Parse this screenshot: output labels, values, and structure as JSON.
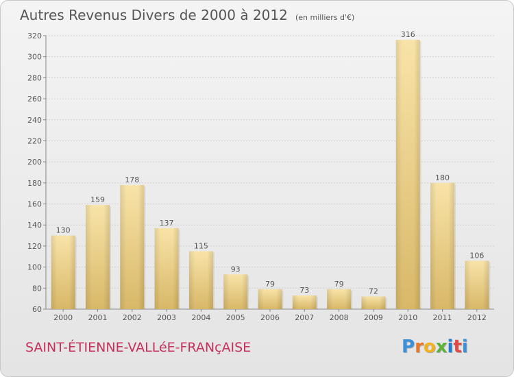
{
  "title": "Autres Revenus Divers de 2000 à 2012",
  "subtitle": "(en milliers d'€)",
  "commune": "SAINT-ÉTIENNE-VALLéE-FRANçAISE",
  "logo": {
    "letters": [
      "P",
      "r",
      "o",
      "x",
      "i",
      "t",
      "i"
    ],
    "colors": [
      "#3a8fd6",
      "#e8772a",
      "#f2b21d",
      "#5db33a",
      "#1e7fd3",
      "#e24a4a",
      "#3a8fd6"
    ]
  },
  "colors": {
    "bar_light": "#f8e3a8",
    "bar_dark": "#d8b868",
    "text": "#555555"
  },
  "chart_data": {
    "type": "bar",
    "title": "Autres Revenus Divers de 2000 à 2012",
    "subtitle": "(en milliers d'€)",
    "categories": [
      "2000",
      "2001",
      "2002",
      "2003",
      "2004",
      "2005",
      "2006",
      "2007",
      "2008",
      "2009",
      "2010",
      "2011",
      "2012"
    ],
    "values": [
      130,
      159,
      178,
      137,
      115,
      93,
      79,
      73,
      79,
      72,
      316,
      180,
      106
    ],
    "value_labels": [
      "130",
      "159",
      "178",
      "137",
      "115",
      "93",
      "79",
      "73",
      "79",
      "72",
      "316",
      "180",
      "106"
    ],
    "ylim": [
      60,
      320
    ],
    "yticks": [
      "60",
      "80",
      "100",
      "120",
      "140",
      "160",
      "180",
      "200",
      "220",
      "240",
      "260",
      "280",
      "300",
      "320"
    ],
    "grid": true
  }
}
